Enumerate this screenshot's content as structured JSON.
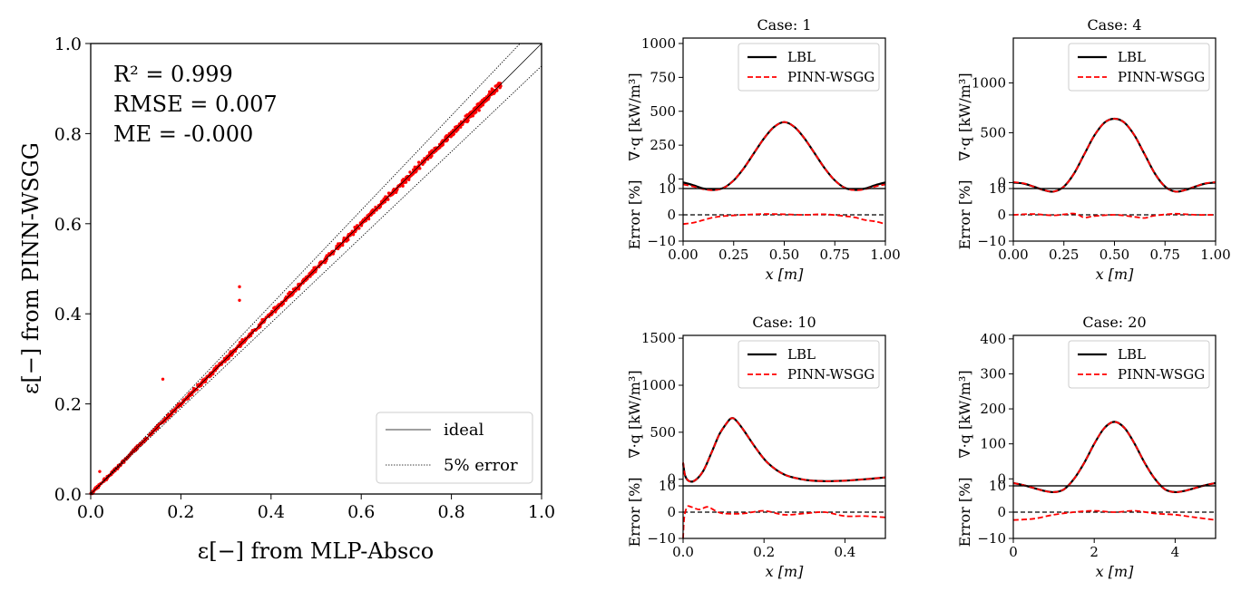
{
  "colors": {
    "lbl": "#000000",
    "pinn": "#ff0000",
    "scatter": "#ff0000",
    "ideal": "#000000",
    "band": "#000000"
  },
  "parity": {
    "xlabel": "ε[−] from MLP-Absco",
    "ylabel": "ε[−] from PINN-WSGG",
    "stats": [
      "R² = 0.999",
      "RMSE = 0.007",
      "ME = -0.000"
    ],
    "legend": [
      "ideal",
      "5% error"
    ],
    "ticks": [
      "0.0",
      "0.2",
      "0.4",
      "0.6",
      "0.8",
      "1.0"
    ],
    "tick_values": [
      0,
      0.2,
      0.4,
      0.6,
      0.8,
      1.0
    ]
  },
  "panel_labels": {
    "ylabel_top": "∇·q [kW/m³]",
    "ylabel_bottom": "Error [%]",
    "xlabel": "x [m]",
    "legend": [
      "LBL",
      "PINN-WSGG"
    ],
    "err_ticks": [
      "10",
      "0",
      "−10"
    ]
  },
  "chart_data": [
    {
      "type": "scatter",
      "title": "",
      "xlabel": "ε[−] from MLP-Absco",
      "ylabel": "ε[−] from PINN-WSGG",
      "xlim": [
        0,
        1
      ],
      "ylim": [
        0,
        1
      ],
      "series": [
        {
          "name": "ideal",
          "x": [
            0,
            1
          ],
          "y": [
            0,
            1
          ]
        },
        {
          "name": "5% error",
          "x": [
            0,
            1
          ],
          "y_upper": [
            0,
            1.05
          ],
          "y_lower": [
            0,
            0.95
          ]
        }
      ],
      "scatter_range": [
        0.0,
        0.91
      ],
      "outliers": [
        [
          0.33,
          0.46
        ],
        [
          0.16,
          0.255
        ],
        [
          0.02,
          0.05
        ],
        [
          0.33,
          0.43
        ]
      ],
      "annotations": [
        "R² = 0.999",
        "RMSE = 0.007",
        "ME = -0.000"
      ],
      "legend_position": "lower-right"
    },
    {
      "type": "line",
      "title": "Case: 1",
      "xlim": [
        0,
        1
      ],
      "ylim": [
        -70,
        1040
      ],
      "err_ylim": [
        -10,
        10
      ],
      "xticks": [
        0,
        0.25,
        0.5,
        0.75,
        1.0
      ],
      "xtick_labels": [
        "0.00",
        "0.25",
        "0.50",
        "0.75",
        "1.00"
      ],
      "yticks": [
        0,
        250,
        500,
        750,
        1000
      ],
      "ytick_labels": [
        "0",
        "250",
        "500",
        "750",
        "1000"
      ],
      "x": [
        0,
        0.05,
        0.1,
        0.15,
        0.2,
        0.25,
        0.3,
        0.35,
        0.4,
        0.45,
        0.5,
        0.55,
        0.6,
        0.65,
        0.7,
        0.75,
        0.8,
        0.85,
        0.9,
        0.95,
        1.0
      ],
      "series": [
        {
          "name": "LBL",
          "values": [
            -25,
            -45,
            -70,
            -80,
            -65,
            -10,
            80,
            190,
            300,
            385,
            420,
            385,
            300,
            190,
            80,
            -10,
            -65,
            -80,
            -70,
            -45,
            -25
          ]
        },
        {
          "name": "PINN-WSGG",
          "values": [
            -40,
            -55,
            -75,
            -82,
            -66,
            -10,
            80,
            190,
            300,
            385,
            420,
            385,
            300,
            190,
            80,
            -10,
            -66,
            -82,
            -75,
            -55,
            -40
          ]
        }
      ],
      "error": {
        "x": [
          0,
          0.05,
          0.1,
          0.15,
          0.2,
          0.3,
          0.4,
          0.5,
          0.6,
          0.7,
          0.8,
          0.85,
          0.9,
          0.95,
          1.0
        ],
        "values": [
          -3.5,
          -3,
          -2,
          -1,
          -0.5,
          0,
          0.3,
          0.2,
          0,
          0.2,
          -0.5,
          -1,
          -2,
          -2.5,
          -3.5
        ]
      },
      "legend_position": "top-right"
    },
    {
      "type": "line",
      "title": "Case: 4",
      "xlim": [
        0,
        1
      ],
      "ylim": [
        -60,
        1450
      ],
      "err_ylim": [
        -10,
        10
      ],
      "xticks": [
        0,
        0.25,
        0.5,
        0.75,
        1.0
      ],
      "xtick_labels": [
        "0.00",
        "0.25",
        "0.50",
        "0.75",
        "1.00"
      ],
      "yticks": [
        0,
        500,
        1000
      ],
      "ytick_labels": [
        "0",
        "500",
        "1000"
      ],
      "x": [
        0,
        0.05,
        0.1,
        0.15,
        0.2,
        0.25,
        0.3,
        0.35,
        0.4,
        0.45,
        0.5,
        0.55,
        0.6,
        0.65,
        0.7,
        0.75,
        0.8,
        0.85,
        0.9,
        0.95,
        1.0
      ],
      "series": [
        {
          "name": "LBL",
          "values": [
            0,
            -10,
            -40,
            -75,
            -90,
            -40,
            90,
            280,
            470,
            600,
            640,
            600,
            470,
            280,
            90,
            -40,
            -90,
            -75,
            -40,
            -10,
            0
          ]
        },
        {
          "name": "PINN-WSGG",
          "values": [
            5,
            -8,
            -40,
            -75,
            -90,
            -40,
            90,
            280,
            470,
            600,
            640,
            600,
            470,
            280,
            90,
            -40,
            -90,
            -75,
            -40,
            -8,
            5
          ]
        }
      ],
      "error": {
        "x": [
          0,
          0.1,
          0.2,
          0.3,
          0.35,
          0.4,
          0.5,
          0.6,
          0.65,
          0.7,
          0.8,
          0.9,
          1.0
        ],
        "values": [
          0,
          0.3,
          -0.2,
          0.5,
          -1,
          -0.5,
          0,
          -0.8,
          -1.2,
          -0.3,
          0.4,
          0,
          0
        ]
      },
      "legend_position": "top-right"
    },
    {
      "type": "line",
      "title": "Case: 10",
      "xlim": [
        0,
        0.5
      ],
      "ylim": [
        -70,
        1530
      ],
      "err_ylim": [
        -10,
        10
      ],
      "xticks": [
        0,
        0.2,
        0.4
      ],
      "xtick_labels": [
        "0.0",
        "0.2",
        "0.4"
      ],
      "yticks": [
        0,
        500,
        1000,
        1500
      ],
      "ytick_labels": [
        "0",
        "500",
        "1000",
        "1500"
      ],
      "x": [
        0,
        0.005,
        0.015,
        0.03,
        0.05,
        0.07,
        0.09,
        0.11,
        0.12,
        0.13,
        0.15,
        0.18,
        0.21,
        0.25,
        0.3,
        0.35,
        0.4,
        0.45,
        0.5
      ],
      "series": [
        {
          "name": "LBL",
          "values": [
            170,
            40,
            -20,
            -10,
            90,
            280,
            480,
            610,
            650,
            630,
            520,
            330,
            170,
            50,
            -5,
            -20,
            -15,
            0,
            20
          ]
        },
        {
          "name": "PINN-WSGG",
          "values": [
            180,
            40,
            -20,
            -10,
            90,
            280,
            480,
            610,
            650,
            630,
            520,
            330,
            170,
            50,
            -5,
            -20,
            -15,
            0,
            20
          ]
        }
      ],
      "error": {
        "x": [
          0,
          0.003,
          0.01,
          0.02,
          0.04,
          0.06,
          0.08,
          0.1,
          0.15,
          0.2,
          0.25,
          0.3,
          0.35,
          0.4,
          0.45,
          0.5
        ],
        "values": [
          -10,
          -2,
          2,
          2,
          1,
          2,
          0.5,
          -0.5,
          -0.5,
          0.5,
          -1,
          -0.5,
          0,
          -1.5,
          -1.5,
          -2
        ]
      },
      "legend_position": "top-right"
    },
    {
      "type": "line",
      "title": "Case: 20",
      "xlim": [
        0,
        5
      ],
      "ylim": [
        -20,
        410
      ],
      "err_ylim": [
        -10,
        10
      ],
      "xticks": [
        0,
        2,
        4
      ],
      "xtick_labels": [
        "0",
        "2",
        "4"
      ],
      "yticks": [
        0,
        100,
        200,
        300,
        400
      ],
      "ytick_labels": [
        "0",
        "100",
        "200",
        "300",
        "400"
      ],
      "x": [
        0,
        0.25,
        0.5,
        0.75,
        1.0,
        1.25,
        1.5,
        1.75,
        2.0,
        2.25,
        2.5,
        2.75,
        3.0,
        3.25,
        3.5,
        3.75,
        4.0,
        4.25,
        4.5,
        4.75,
        5.0
      ],
      "series": [
        {
          "name": "LBL",
          "values": [
            -12,
            -18,
            -26,
            -34,
            -38,
            -30,
            0,
            45,
            100,
            145,
            163,
            145,
            100,
            45,
            0,
            -30,
            -38,
            -34,
            -26,
            -18,
            -12
          ]
        },
        {
          "name": "PINN-WSGG",
          "values": [
            -12,
            -18,
            -26,
            -34,
            -38,
            -30,
            0,
            45,
            100,
            145,
            163,
            145,
            100,
            45,
            0,
            -30,
            -38,
            -34,
            -26,
            -18,
            -12
          ]
        }
      ],
      "error": {
        "x": [
          0,
          0.5,
          1.0,
          1.5,
          2.0,
          2.5,
          3.0,
          3.5,
          4.0,
          4.5,
          5.0
        ],
        "values": [
          -3,
          -2.5,
          -1,
          0,
          0.5,
          0,
          0.5,
          -0.5,
          -1,
          -2,
          -3
        ]
      },
      "legend_position": "top-right"
    }
  ]
}
